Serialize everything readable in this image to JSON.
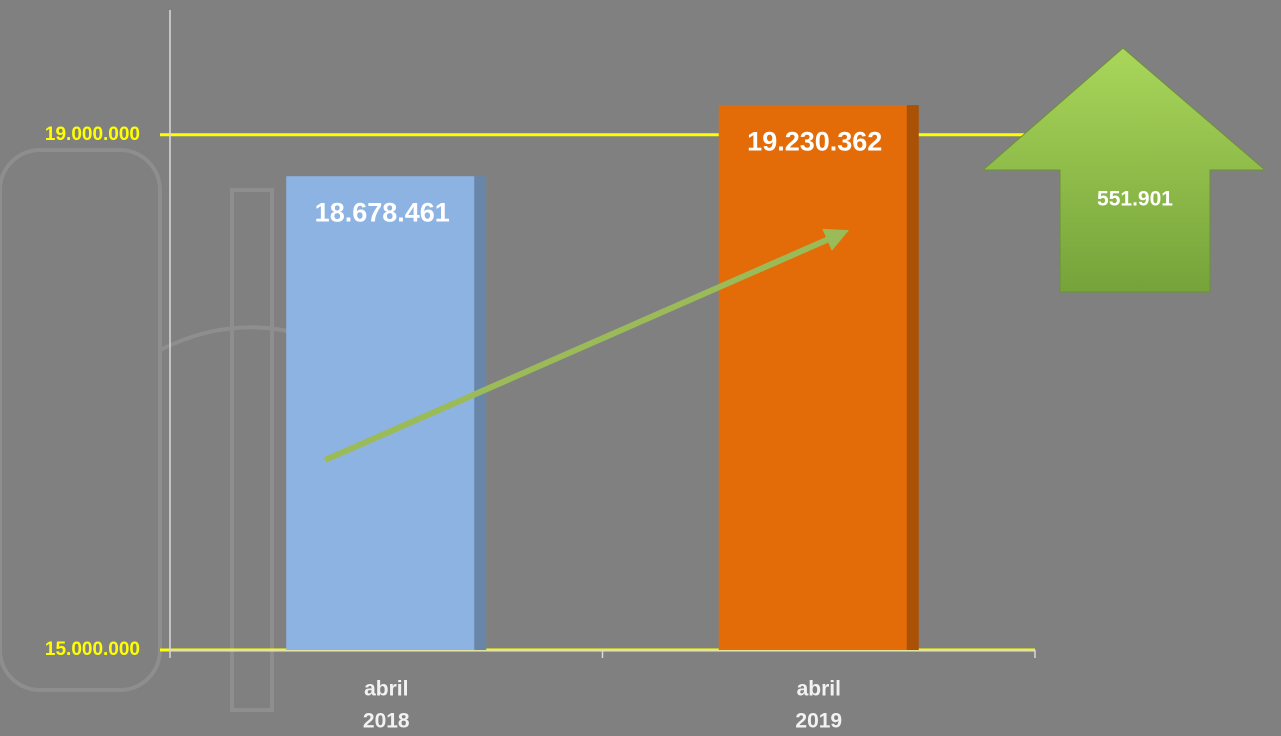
{
  "chart_data": {
    "type": "bar",
    "categories": [
      [
        "abril",
        "2018"
      ],
      [
        "abril",
        "2019"
      ]
    ],
    "values": [
      18678461,
      19230362
    ],
    "value_labels": [
      "18.678.461",
      "19.230.362"
    ],
    "colors": [
      "#8db3e2",
      "#e36c09"
    ],
    "ylim": [
      15000000,
      20000000
    ],
    "yticks": [
      {
        "value": 15000000,
        "label": "15.000.000"
      },
      {
        "value": 19000000,
        "label": "19.000.000"
      }
    ],
    "grid": true,
    "grid_color": "#ffff00",
    "change": {
      "value": 551901,
      "label": "551.901"
    }
  }
}
